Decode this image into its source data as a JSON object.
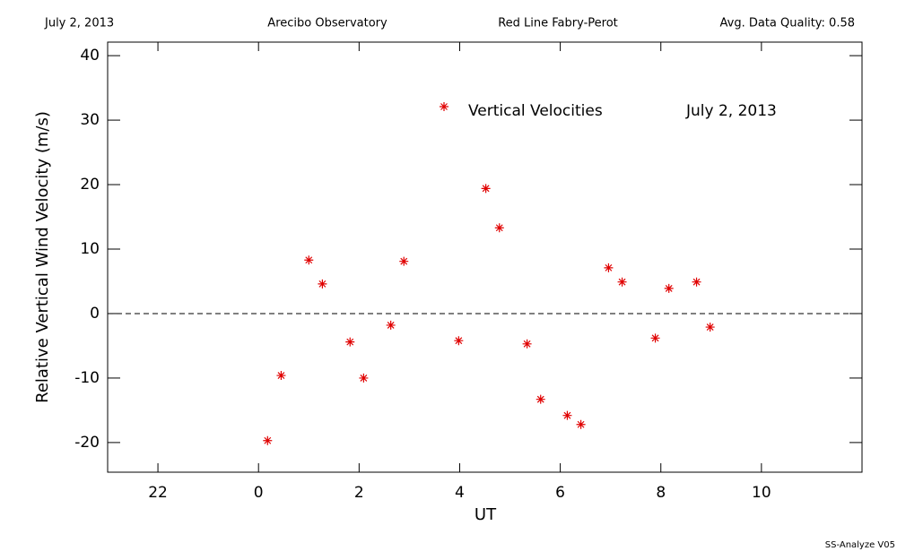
{
  "header": {
    "date": "July 2, 2013",
    "observatory": "Arecibo Observatory",
    "instrument": "Red Line Fabry-Perot",
    "quality": "Avg. Data Quality: 0.58"
  },
  "chart_data": {
    "type": "scatter",
    "xlabel": "UT",
    "ylabel": "Relative Vertical Wind Velocity (m/s)",
    "annotation": "July 2, 2013",
    "xlim": [
      -3,
      12
    ],
    "xticks": [
      {
        "value": -2,
        "label": "22"
      },
      0,
      2,
      4,
      6,
      8,
      10
    ],
    "ylim": [
      -24.6,
      42.1
    ],
    "yticks": [
      -20,
      -10,
      0,
      10,
      20,
      30,
      40
    ],
    "reference_line": 0,
    "series": [
      {
        "name": "Vertical Velocities",
        "color": "#e00000",
        "x": [
          0.18,
          0.45,
          1.0,
          1.27,
          1.82,
          2.09,
          2.63,
          2.89,
          3.98,
          4.52,
          4.79,
          5.34,
          5.61,
          6.14,
          6.41,
          6.96,
          7.23,
          7.89,
          8.16,
          8.71,
          8.98
        ],
        "values": [
          -19.7,
          -9.6,
          8.3,
          4.6,
          -4.4,
          -10.0,
          -1.8,
          8.1,
          -4.2,
          19.4,
          13.3,
          -4.7,
          -13.3,
          -15.8,
          -17.2,
          7.1,
          4.9,
          -3.8,
          3.9,
          4.9,
          -2.1
        ]
      }
    ]
  },
  "footer": "SS-Analyze V05"
}
